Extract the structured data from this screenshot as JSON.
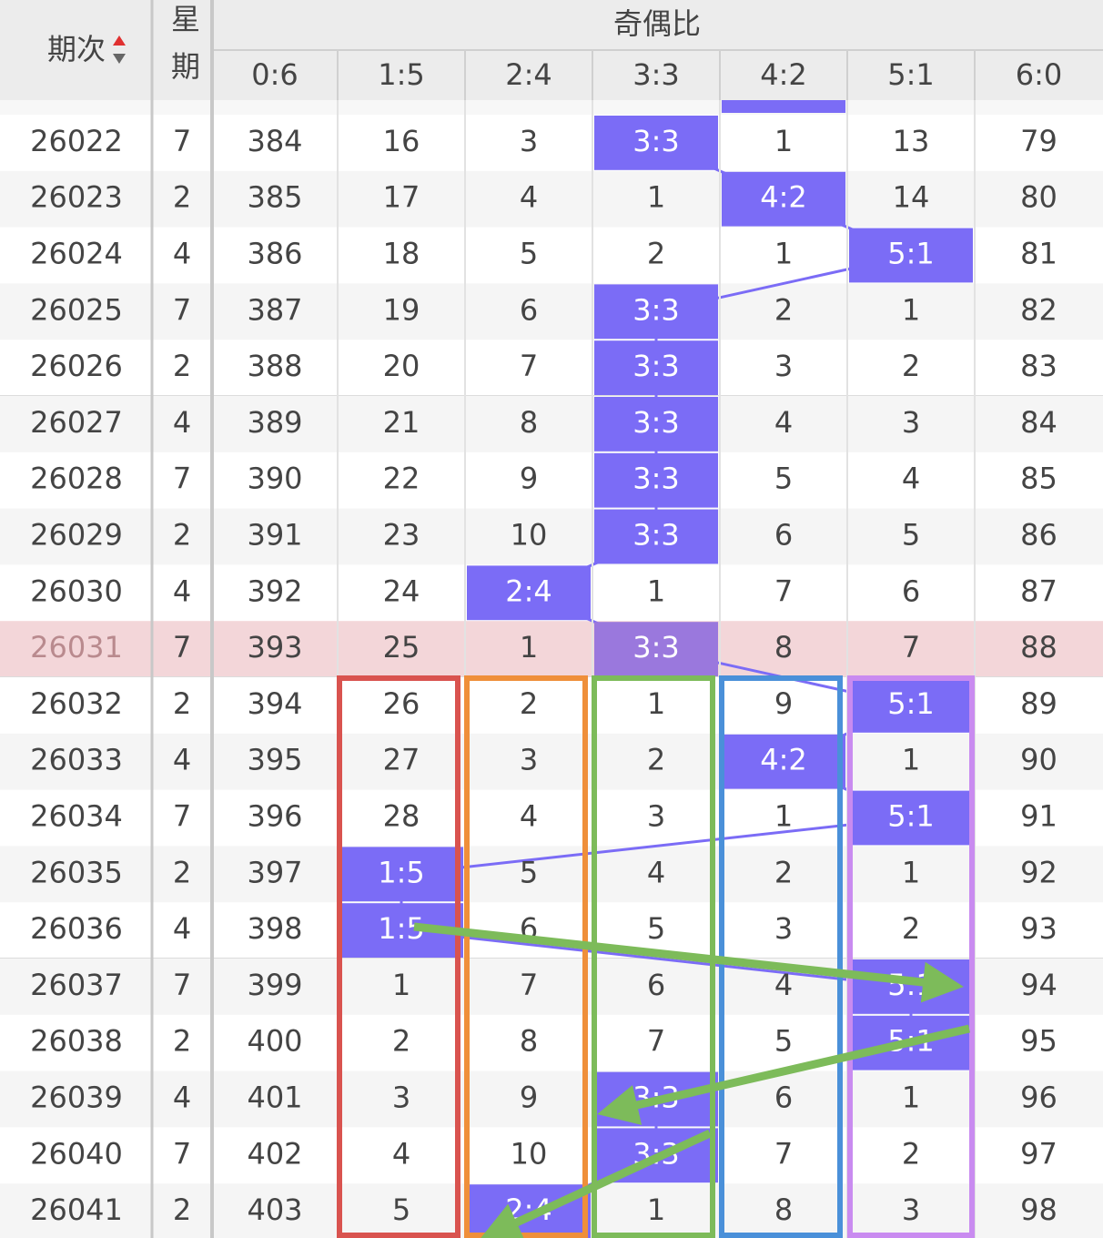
{
  "header": {
    "period": "期次",
    "weekday": "星期",
    "group": "奇偶比",
    "columns": [
      "0:6",
      "1:5",
      "2:4",
      "3:3",
      "4:2",
      "5:1",
      "6:0"
    ]
  },
  "rows": [
    {
      "period": 26022,
      "weekday": 7,
      "cells": [
        384,
        16,
        3,
        "3:3",
        1,
        13,
        79
      ]
    },
    {
      "period": 26023,
      "weekday": 2,
      "cells": [
        385,
        17,
        4,
        1,
        "4:2",
        14,
        80
      ]
    },
    {
      "period": 26024,
      "weekday": 4,
      "cells": [
        386,
        18,
        5,
        2,
        1,
        "5:1",
        81
      ]
    },
    {
      "period": 26025,
      "weekday": 7,
      "cells": [
        387,
        19,
        6,
        "3:3",
        2,
        1,
        82
      ]
    },
    {
      "period": 26026,
      "weekday": 2,
      "cells": [
        388,
        20,
        7,
        "3:3",
        3,
        2,
        83
      ]
    },
    {
      "period": 26027,
      "weekday": 4,
      "cells": [
        389,
        21,
        8,
        "3:3",
        4,
        3,
        84
      ]
    },
    {
      "period": 26028,
      "weekday": 7,
      "cells": [
        390,
        22,
        9,
        "3:3",
        5,
        4,
        85
      ]
    },
    {
      "period": 26029,
      "weekday": 2,
      "cells": [
        391,
        23,
        10,
        "3:3",
        6,
        5,
        86
      ]
    },
    {
      "period": 26030,
      "weekday": 4,
      "cells": [
        392,
        24,
        "2:4",
        1,
        7,
        6,
        87
      ]
    },
    {
      "period": 26031,
      "weekday": 7,
      "cells": [
        393,
        25,
        1,
        "3:3",
        8,
        7,
        88
      ]
    },
    {
      "period": 26032,
      "weekday": 2,
      "cells": [
        394,
        26,
        2,
        1,
        9,
        "5:1",
        89
      ]
    },
    {
      "period": 26033,
      "weekday": 4,
      "cells": [
        395,
        27,
        3,
        2,
        "4:2",
        1,
        90
      ]
    },
    {
      "period": 26034,
      "weekday": 7,
      "cells": [
        396,
        28,
        4,
        3,
        1,
        "5:1",
        91
      ]
    },
    {
      "period": 26035,
      "weekday": 2,
      "cells": [
        397,
        "1:5",
        5,
        4,
        2,
        1,
        92
      ]
    },
    {
      "period": 26036,
      "weekday": 4,
      "cells": [
        398,
        "1:5",
        6,
        5,
        3,
        2,
        93
      ]
    },
    {
      "period": 26037,
      "weekday": 7,
      "cells": [
        399,
        1,
        7,
        6,
        4,
        "5:1",
        94
      ]
    },
    {
      "period": 26038,
      "weekday": 2,
      "cells": [
        400,
        2,
        8,
        7,
        5,
        "5:1",
        95
      ]
    },
    {
      "period": 26039,
      "weekday": 4,
      "cells": [
        401,
        3,
        9,
        "3:3",
        6,
        1,
        96
      ]
    },
    {
      "period": 26040,
      "weekday": 7,
      "cells": [
        402,
        4,
        10,
        "3:3",
        7,
        2,
        97
      ]
    },
    {
      "period": 26041,
      "weekday": 2,
      "cells": [
        403,
        5,
        "2:4",
        1,
        8,
        3,
        98
      ]
    }
  ]
}
